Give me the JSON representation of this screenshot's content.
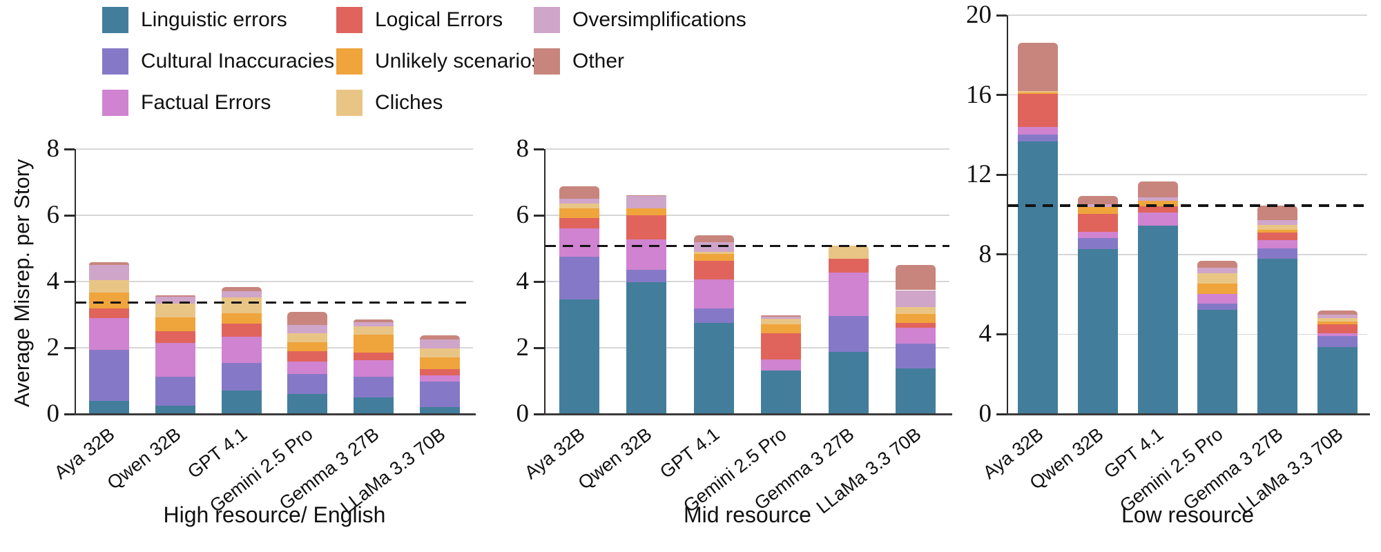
{
  "legend": {
    "items": [
      {
        "key": "linguistic",
        "label": "Linguistic errors",
        "color": "#427E9B"
      },
      {
        "key": "cultural",
        "label": "Cultural Inaccuracies",
        "color": "#8579C7"
      },
      {
        "key": "factual",
        "label": "Factual Errors",
        "color": "#D083D0"
      },
      {
        "key": "logical",
        "label": "Logical Errors",
        "color": "#E0645C"
      },
      {
        "key": "unlikely",
        "label": "Unlikely scenarios",
        "color": "#F0A43C"
      },
      {
        "key": "cliches",
        "label": "Cliches",
        "color": "#E9C585"
      },
      {
        "key": "oversimplifications",
        "label": "Oversimplifications",
        "color": "#CFA6C9"
      },
      {
        "key": "other",
        "label": "Other",
        "color": "#C8857D"
      }
    ]
  },
  "chart_data": [
    {
      "type": "bar",
      "stacked": true,
      "title": "High resource/ English",
      "ylabel": "Average Misrep. per Story",
      "categories": [
        "Aya 32B",
        "Qwen 32B",
        "GPT 4.1",
        "Gemini 2.5 Pro",
        "Gemma 3 27B",
        "LLaMa 3.3 70B"
      ],
      "ylim": [
        0,
        8
      ],
      "yticks": [
        0,
        2,
        4,
        6,
        8
      ],
      "grid": true,
      "dashed_line_y": 3.36,
      "series": [
        {
          "name": "Linguistic errors",
          "values": [
            0.4,
            0.24,
            0.7,
            0.6,
            0.49,
            0.2
          ]
        },
        {
          "name": "Cultural Inaccuracies",
          "values": [
            1.53,
            0.89,
            0.85,
            0.61,
            0.63,
            0.77
          ]
        },
        {
          "name": "Factual Errors",
          "values": [
            0.97,
            1.01,
            0.79,
            0.37,
            0.51,
            0.19
          ]
        },
        {
          "name": "Logical Errors",
          "values": [
            0.28,
            0.36,
            0.39,
            0.32,
            0.23,
            0.2
          ]
        },
        {
          "name": "Unlikely scenarios",
          "values": [
            0.48,
            0.42,
            0.31,
            0.27,
            0.54,
            0.35
          ]
        },
        {
          "name": "Cliches",
          "values": [
            0.38,
            0.42,
            0.48,
            0.26,
            0.25,
            0.27
          ]
        },
        {
          "name": "Oversimplifications",
          "values": [
            0.46,
            0.2,
            0.19,
            0.25,
            0.13,
            0.27
          ]
        },
        {
          "name": "Other",
          "values": [
            0.09,
            0.04,
            0.13,
            0.4,
            0.08,
            0.12
          ]
        }
      ]
    },
    {
      "type": "bar",
      "stacked": true,
      "title": "Mid resource",
      "categories": [
        "Aya 32B",
        "Qwen 32B",
        "GPT 4.1",
        "Gemini 2.5 Pro",
        "Gemma 3 27B",
        "LLaMa 3.3 70B"
      ],
      "ylim": [
        0,
        8
      ],
      "yticks": [
        0,
        2,
        4,
        6,
        8
      ],
      "grid": true,
      "dashed_line_y": 5.07,
      "series": [
        {
          "name": "Linguistic errors",
          "values": [
            3.46,
            3.98,
            2.75,
            1.31,
            1.87,
            1.38
          ]
        },
        {
          "name": "Cultural Inaccuracies",
          "values": [
            1.3,
            0.37,
            0.43,
            0.0,
            1.09,
            0.75
          ]
        },
        {
          "name": "Factual Errors",
          "values": [
            0.85,
            0.93,
            0.89,
            0.33,
            1.32,
            0.47
          ]
        },
        {
          "name": "Logical Errors",
          "values": [
            0.31,
            0.72,
            0.56,
            0.8,
            0.41,
            0.16
          ]
        },
        {
          "name": "Unlikely scenarios",
          "values": [
            0.28,
            0.2,
            0.2,
            0.27,
            0.0,
            0.27
          ]
        },
        {
          "name": "Cliches",
          "values": [
            0.15,
            0.0,
            0.07,
            0.17,
            0.4,
            0.2
          ]
        },
        {
          "name": "Oversimplifications",
          "values": [
            0.15,
            0.38,
            0.29,
            0.05,
            0.0,
            0.51
          ]
        },
        {
          "name": "Other",
          "values": [
            0.38,
            0.03,
            0.2,
            0.05,
            0.0,
            0.76
          ]
        }
      ]
    },
    {
      "type": "bar",
      "stacked": true,
      "title": "Low resource",
      "categories": [
        "Aya 32B",
        "Qwen 32B",
        "GPT 4.1",
        "Gemini 2.5 Pro",
        "Gemma 3 27B",
        "LLaMa 3.3 70B"
      ],
      "ylim": [
        0,
        20
      ],
      "yticks": [
        0,
        4,
        8,
        12,
        16,
        20
      ],
      "grid": true,
      "dashed_line_y": 10.45,
      "series": [
        {
          "name": "Linguistic errors",
          "values": [
            13.66,
            8.26,
            9.45,
            5.21,
            7.77,
            3.35
          ]
        },
        {
          "name": "Cultural Inaccuracies",
          "values": [
            0.35,
            0.58,
            0.0,
            0.31,
            0.53,
            0.55
          ]
        },
        {
          "name": "Factual Errors",
          "values": [
            0.37,
            0.28,
            0.65,
            0.51,
            0.43,
            0.15
          ]
        },
        {
          "name": "Logical Errors",
          "values": [
            1.66,
            0.93,
            0.3,
            0.0,
            0.38,
            0.45
          ]
        },
        {
          "name": "Unlikely scenarios",
          "values": [
            0.1,
            0.33,
            0.3,
            0.51,
            0.14,
            0.15
          ]
        },
        {
          "name": "Cliches",
          "values": [
            0.06,
            0.0,
            0.0,
            0.51,
            0.23,
            0.15
          ]
        },
        {
          "name": "Oversimplifications",
          "values": [
            0.0,
            0.15,
            0.15,
            0.29,
            0.25,
            0.2
          ]
        },
        {
          "name": "Other",
          "values": [
            2.43,
            0.4,
            0.8,
            0.34,
            0.73,
            0.2
          ]
        }
      ]
    }
  ]
}
